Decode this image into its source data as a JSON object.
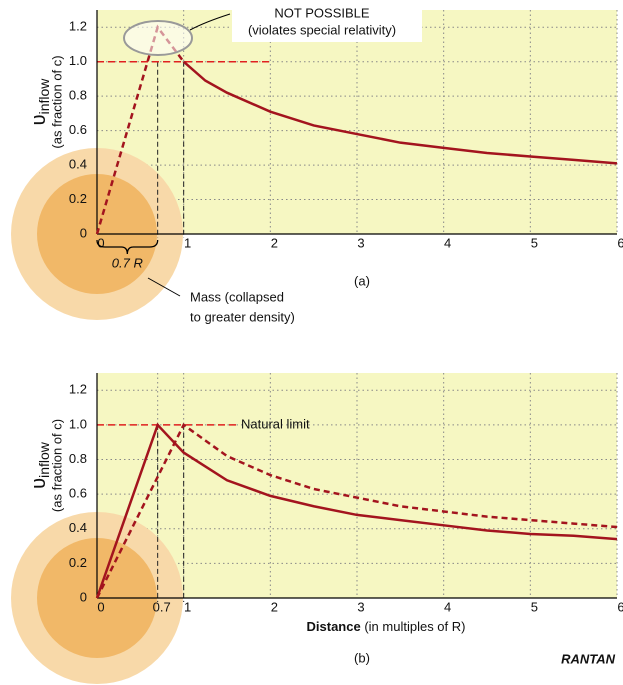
{
  "chart_data": [
    {
      "type": "line",
      "title": "(a)",
      "ylabel_symbol": "υ",
      "ylabel_sub": "inflow",
      "ylabel_note": "(as fraction of c)",
      "xlim": [
        0,
        6
      ],
      "ylim": [
        0,
        1.3
      ],
      "xticks": [
        0,
        1,
        2,
        3,
        4,
        5,
        6
      ],
      "yticks": [
        0,
        0.2,
        0.4,
        0.6,
        0.8,
        {
          "value": 1,
          "label": "1.0"
        },
        1.2
      ],
      "grid": true,
      "guides": [
        0.7,
        1
      ],
      "limit_line": {
        "y": 1,
        "x": [
          0,
          2
        ]
      },
      "series": [
        {
          "x": [
            0,
            0.7,
            1
          ],
          "values": [
            0,
            1.2,
            1
          ],
          "color": "#a3141e",
          "dash": true
        },
        {
          "x": [
            1,
            1.25,
            1.5,
            2,
            2.5,
            3,
            3.5,
            4,
            4.5,
            5,
            5.5,
            6
          ],
          "values": [
            1,
            0.89,
            0.82,
            0.71,
            0.63,
            0.58,
            0.53,
            0.5,
            0.47,
            0.45,
            0.43,
            0.41
          ],
          "color": "#a3141e",
          "dash": false
        }
      ],
      "annotations": [
        "NOT POSSIBLE",
        "(violates special relativity)",
        "0.7 R",
        "Mass (collapsed",
        "to greater density)"
      ]
    },
    {
      "type": "line",
      "title": "(b)",
      "ylabel_symbol": "υ",
      "ylabel_sub": "inflow",
      "ylabel_note": "(as fraction of c)",
      "xlabel": "Distance",
      "xlabel_note": "(in multiples of R)",
      "xlim": [
        0,
        6
      ],
      "ylim": [
        0,
        1.3
      ],
      "xticks": [
        0,
        0.7,
        1,
        2,
        3,
        4,
        5,
        6
      ],
      "yticks": [
        0,
        0.2,
        0.4,
        0.6,
        0.8,
        {
          "value": 1,
          "label": "1.0"
        },
        1.2
      ],
      "grid": true,
      "guides": [
        0.7,
        1
      ],
      "limit_line": {
        "y": 1,
        "x": [
          0,
          1.65
        ]
      },
      "series": [
        {
          "x": [
            0,
            0.7,
            1,
            1.5,
            2,
            2.5,
            3,
            3.5,
            4,
            4.5,
            5,
            5.5,
            6
          ],
          "values": [
            0,
            1,
            0.84,
            0.68,
            0.59,
            0.53,
            0.48,
            0.45,
            0.42,
            0.39,
            0.37,
            0.36,
            0.34
          ],
          "color": "#a3141e",
          "dash": false
        },
        {
          "x": [
            0,
            1,
            1.5,
            2,
            2.5,
            3,
            3.5,
            4,
            4.5,
            5,
            5.5,
            6
          ],
          "values": [
            0,
            1,
            0.82,
            0.71,
            0.63,
            0.58,
            0.53,
            0.5,
            0.47,
            0.45,
            0.43,
            0.41
          ],
          "color": "#a3141e",
          "dash": true
        }
      ],
      "annotations": [
        "Natural limit"
      ],
      "credit": "RANTAN"
    }
  ]
}
